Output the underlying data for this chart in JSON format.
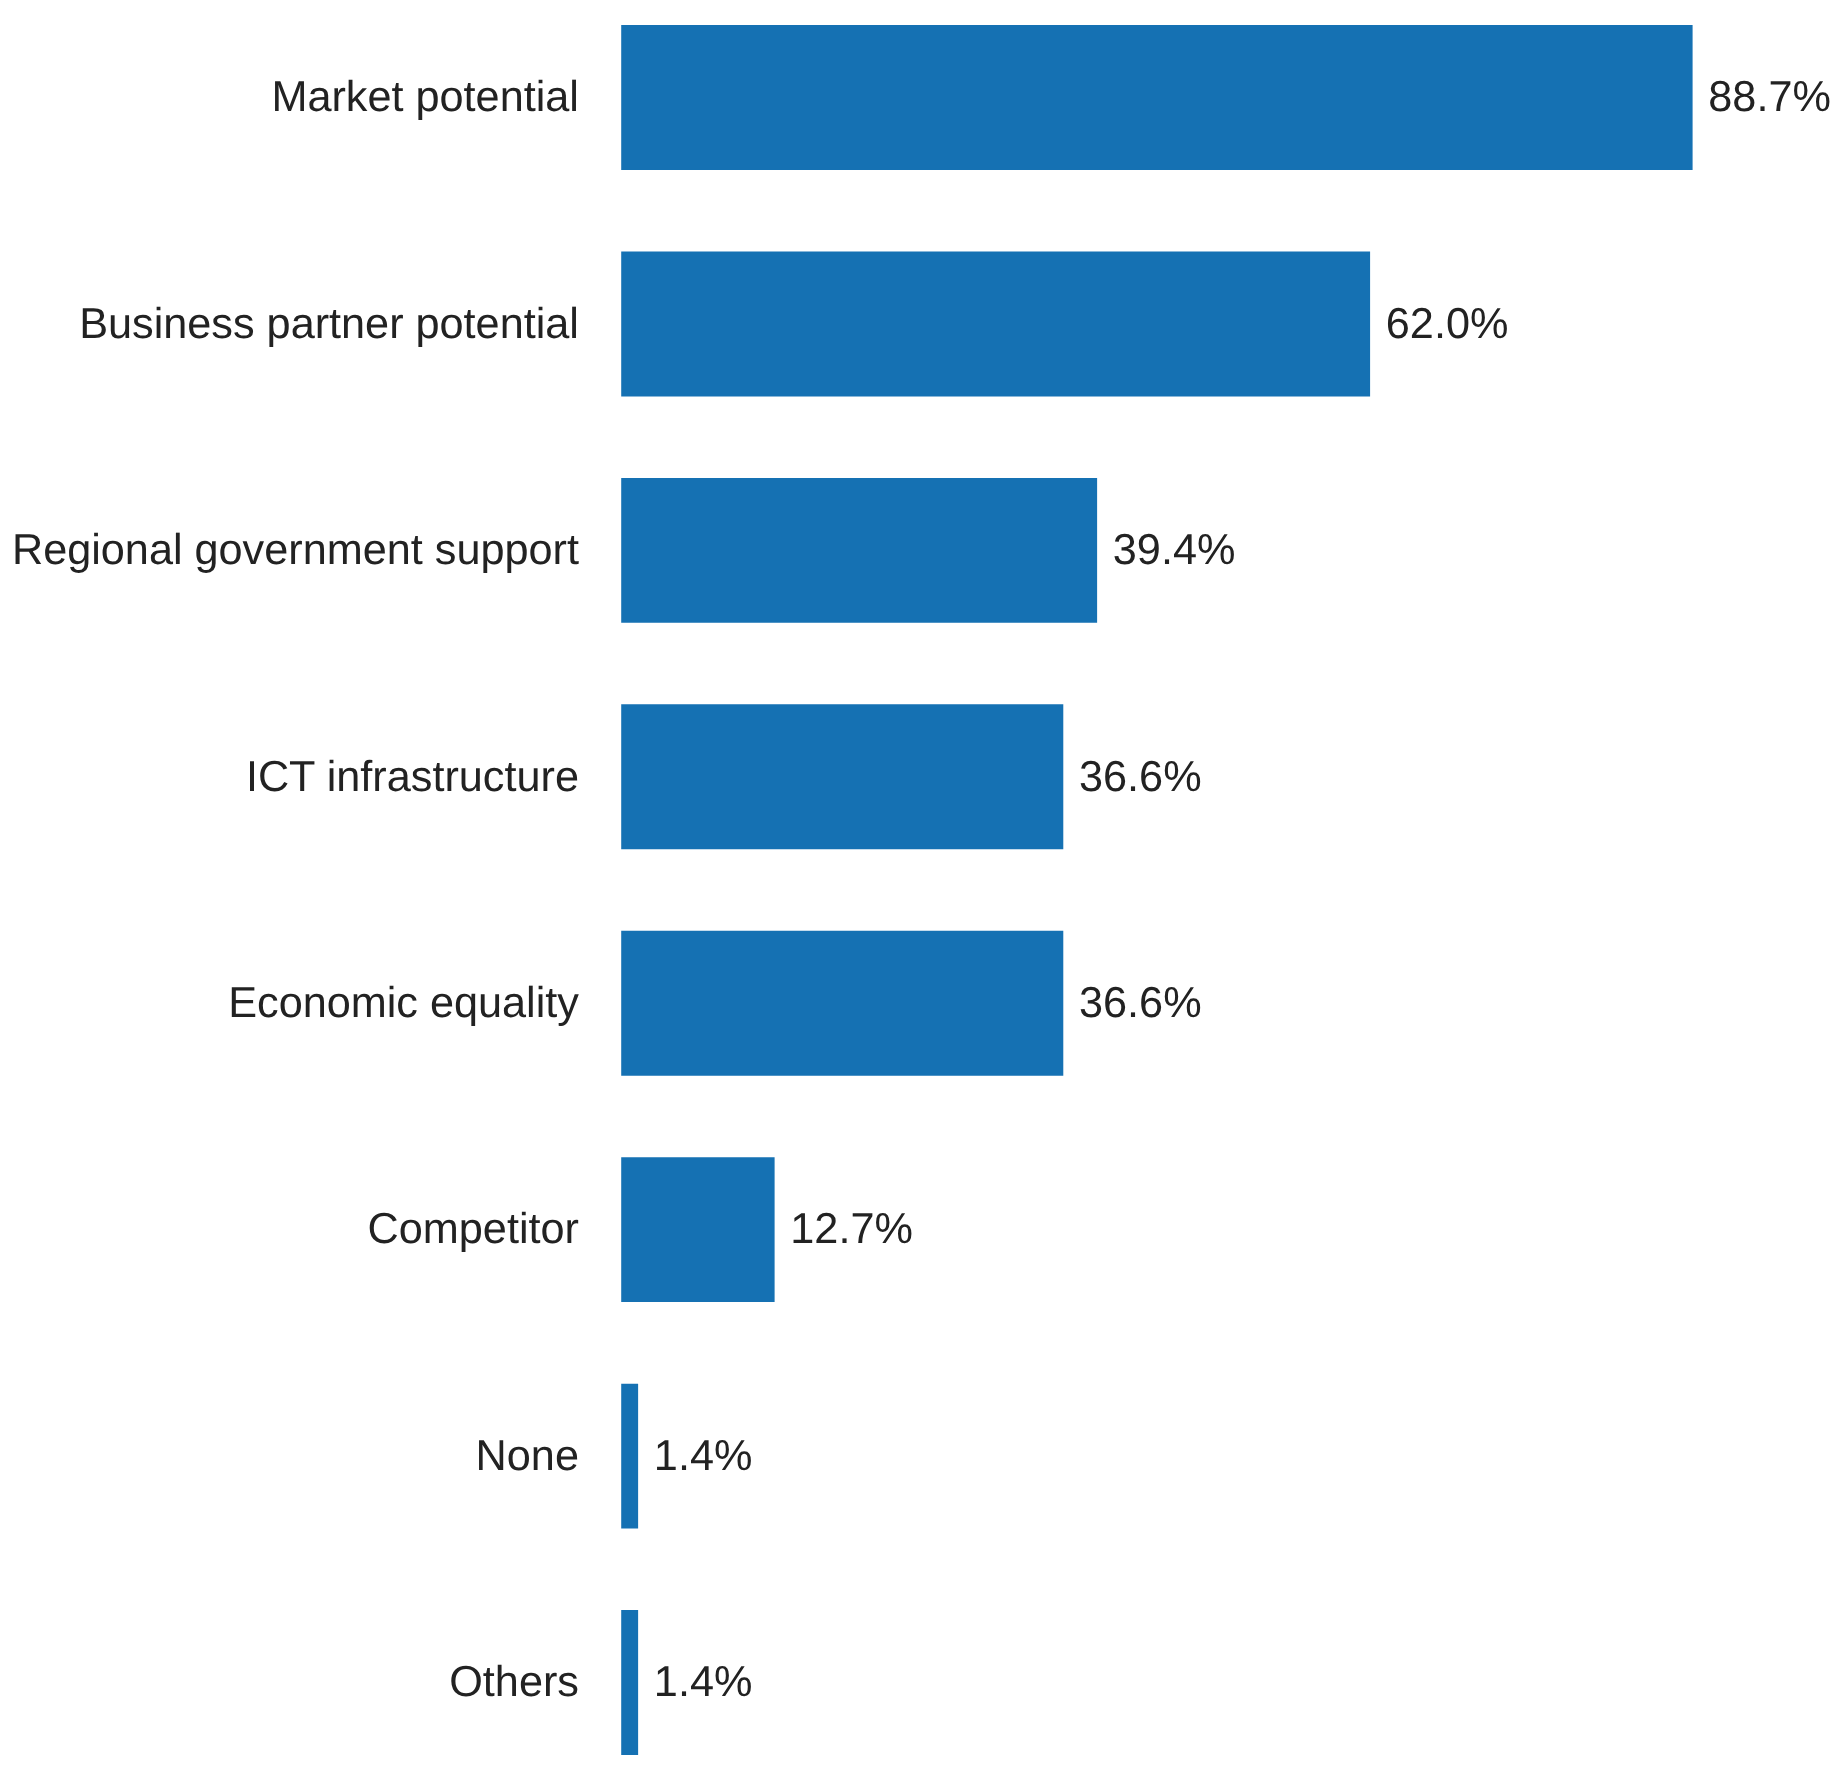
{
  "chart_data": {
    "type": "bar",
    "orientation": "horizontal",
    "categories": [
      "Market potential",
      "Business partner potential",
      "Regional government support",
      "ICT infrastructure",
      "Economic equality",
      "Competitor",
      "None",
      "Others"
    ],
    "values": [
      88.7,
      62.0,
      39.4,
      36.6,
      36.6,
      12.7,
      1.4,
      1.4
    ],
    "value_labels": [
      "88.7%",
      "62.0%",
      "39.4%",
      "36.6%",
      "36.6%",
      "12.7%",
      "1.4%",
      "1.4%"
    ],
    "color": "#1571b3",
    "tick_labels": "y"
  }
}
